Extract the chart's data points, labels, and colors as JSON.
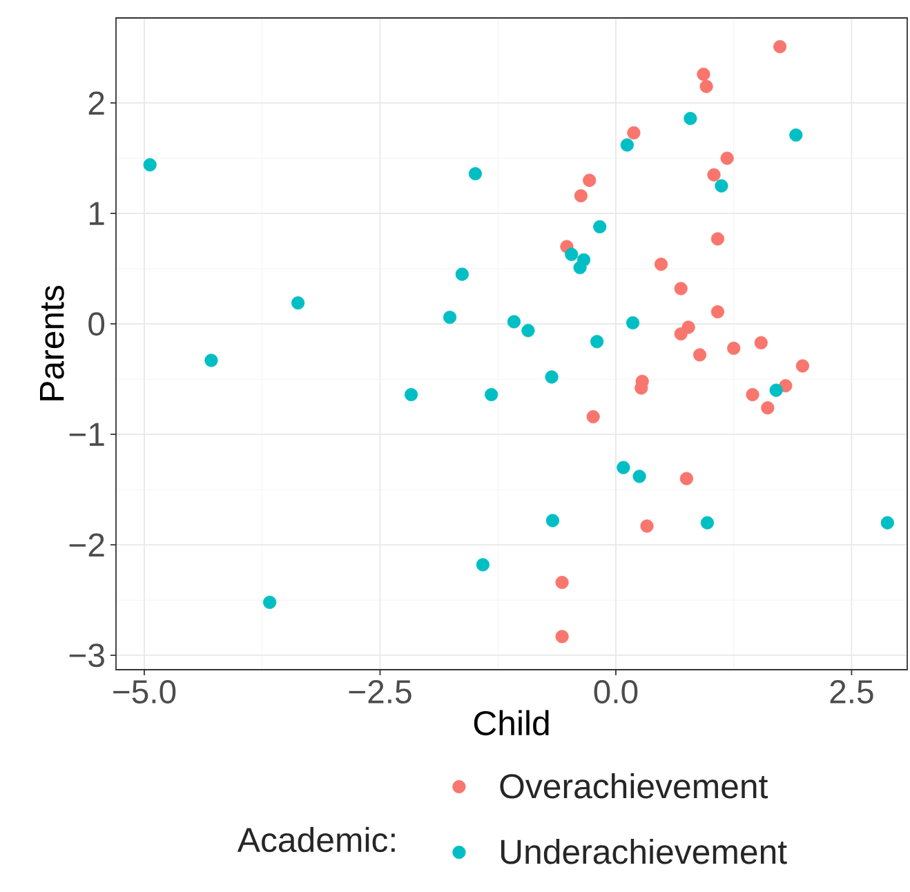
{
  "chart_data": {
    "type": "scatter",
    "xlabel": "Child",
    "ylabel": "Parents",
    "legend_title": "Academic:",
    "legend": "bottom",
    "grid": true,
    "marker": "circle",
    "xlim": [
      -5.3,
      3.09
    ],
    "ylim": [
      -3.13,
      2.77
    ],
    "xticks": [
      {
        "value": -5,
        "label": "−5.0"
      },
      {
        "value": -2.5,
        "label": "−2.5"
      },
      {
        "value": 0,
        "label": "0.0"
      },
      {
        "value": 2.5,
        "label": "2.5"
      }
    ],
    "yticks": [
      {
        "value": -3,
        "label": "−3"
      },
      {
        "value": -2,
        "label": "−2"
      },
      {
        "value": -1,
        "label": "−1"
      },
      0,
      1,
      2
    ],
    "series": [
      {
        "name": "Overachievement",
        "color": "#f8766d",
        "x": [
          1.74,
          0.93,
          0.96,
          0.19,
          1.18,
          1.04,
          -0.28,
          -0.37,
          1.08,
          -0.52,
          0.48,
          0.69,
          1.08,
          0.77,
          0.69,
          0.89,
          1.25,
          1.54,
          1.98,
          1.8,
          1.45,
          1.61,
          0.28,
          0.27,
          -0.24,
          0.75,
          0.33,
          -0.57,
          -0.57
        ],
        "values": [
          2.51,
          2.26,
          2.15,
          1.73,
          1.5,
          1.35,
          1.3,
          1.16,
          0.77,
          0.7,
          0.54,
          0.32,
          0.11,
          -0.03,
          -0.09,
          -0.28,
          -0.22,
          -0.17,
          -0.38,
          -0.56,
          -0.64,
          -0.76,
          -0.52,
          -0.58,
          -0.84,
          -1.4,
          -1.83,
          -2.34,
          -2.83
        ]
      },
      {
        "name": "Underachievement",
        "color": "#00bfc4",
        "x": [
          0.79,
          1.91,
          0.12,
          1.12,
          -0.17,
          -0.47,
          -0.34,
          -0.38,
          -1.08,
          -0.93,
          0.18,
          -0.2,
          -0.68,
          1.7,
          0.08,
          0.25,
          -0.67,
          0.97,
          2.88,
          -4.94,
          -1.49,
          -1.63,
          -3.37,
          -1.76,
          -4.29,
          -2.17,
          -1.32,
          -1.41,
          -3.67
        ],
        "values": [
          1.86,
          1.71,
          1.62,
          1.25,
          0.88,
          0.63,
          0.58,
          0.51,
          0.02,
          -0.06,
          0.01,
          -0.16,
          -0.48,
          -0.6,
          -1.3,
          -1.38,
          -1.78,
          -1.8,
          -1.8,
          1.44,
          1.36,
          0.45,
          0.19,
          0.06,
          -0.33,
          -0.64,
          -0.64,
          -2.18,
          -2.52
        ]
      }
    ]
  }
}
